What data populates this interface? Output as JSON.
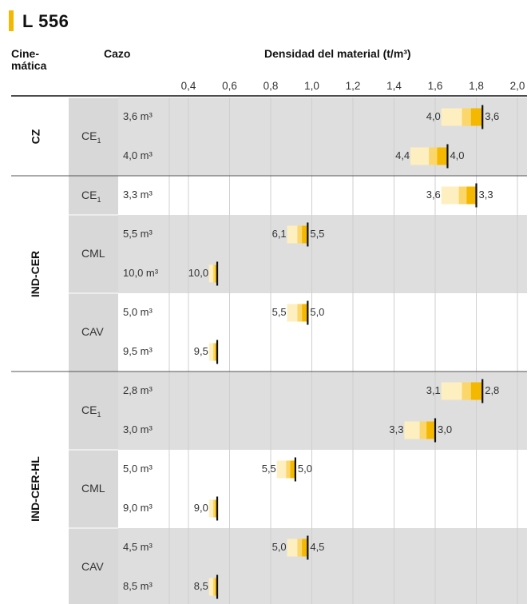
{
  "title": "L 556",
  "headers": {
    "cinematica": "Cine-\nmática",
    "cazo": "Cazo",
    "densidad": "Densidad del material (t/m³)"
  },
  "chart_data": {
    "type": "bar",
    "title": "Densidad del material (t/m³)",
    "x_ticks": [
      "0,4",
      "0,6",
      "0,8",
      "1,0",
      "1,2",
      "1,4",
      "1,6",
      "1,8",
      "2,0"
    ],
    "xlim": [
      0.3,
      2.05
    ],
    "groups": [
      {
        "cinematica": "CZ",
        "subgroups": [
          {
            "cazo": "CE",
            "sub": "1",
            "rows": [
              {
                "volume": "3,6 m³",
                "low": 1.63,
                "high": 1.83,
                "low_label": "4,0",
                "high_label": "3,6"
              },
              {
                "volume": "4,0 m³",
                "low": 1.48,
                "high": 1.66,
                "low_label": "4,4",
                "high_label": "4,0"
              }
            ]
          }
        ]
      },
      {
        "cinematica": "IND-CER",
        "subgroups": [
          {
            "cazo": "CE",
            "sub": "1",
            "rows": [
              {
                "volume": "3,3 m³",
                "low": 1.63,
                "high": 1.8,
                "low_label": "3,6",
                "high_label": "3,3"
              }
            ]
          },
          {
            "cazo": "CML",
            "sub": "",
            "rows": [
              {
                "volume": "5,5 m³",
                "low": 0.88,
                "high": 0.98,
                "low_label": "6,1",
                "high_label": "5,5"
              },
              {
                "volume": "10,0 m³",
                "low": 0.5,
                "high": 0.54,
                "low_label": "10,0",
                "high_label": ""
              }
            ]
          },
          {
            "cazo": "CAV",
            "sub": "",
            "rows": [
              {
                "volume": "5,0 m³",
                "low": 0.88,
                "high": 0.98,
                "low_label": "5,5",
                "high_label": "5,0"
              },
              {
                "volume": "9,5 m³",
                "low": 0.5,
                "high": 0.54,
                "low_label": "9,5",
                "high_label": ""
              }
            ]
          }
        ]
      },
      {
        "cinematica": "IND-CER-HL",
        "subgroups": [
          {
            "cazo": "CE",
            "sub": "1",
            "rows": [
              {
                "volume": "2,8 m³",
                "low": 1.63,
                "high": 1.83,
                "low_label": "3,1",
                "high_label": "2,8"
              },
              {
                "volume": "3,0 m³",
                "low": 1.45,
                "high": 1.6,
                "low_label": "3,3",
                "high_label": "3,0"
              }
            ]
          },
          {
            "cazo": "CML",
            "sub": "",
            "rows": [
              {
                "volume": "5,0 m³",
                "low": 0.83,
                "high": 0.92,
                "low_label": "5,5",
                "high_label": "5,0"
              },
              {
                "volume": "9,0 m³",
                "low": 0.5,
                "high": 0.54,
                "low_label": "9,0",
                "high_label": ""
              }
            ]
          },
          {
            "cazo": "CAV",
            "sub": "",
            "rows": [
              {
                "volume": "4,5 m³",
                "low": 0.88,
                "high": 0.98,
                "low_label": "5,0",
                "high_label": "4,5"
              },
              {
                "volume": "8,5 m³",
                "low": 0.5,
                "high": 0.54,
                "low_label": "8,5",
                "high_label": ""
              }
            ]
          }
        ]
      }
    ]
  },
  "colors": {
    "accent": "#f5b800",
    "band": "#dedede",
    "cazo_bg": "#d8d8d8",
    "bar_light": "#fdefc0",
    "bar_mid": "#fbd66a",
    "bar_strong": "#f5b800",
    "marker": "#111111"
  }
}
